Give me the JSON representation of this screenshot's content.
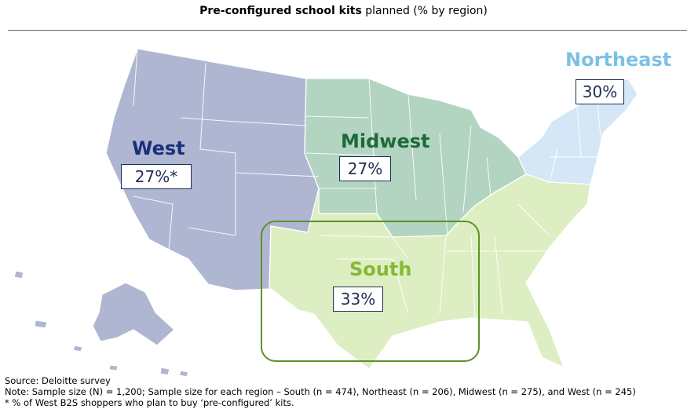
{
  "title": {
    "bold": "Pre-configured school kits",
    "rest": " planned (% by region)"
  },
  "colors": {
    "west": "#aeb6d2",
    "midwest": "#b2d4c0",
    "south": "#ddeec2",
    "northeast": "#d5e7f6",
    "west_label": "#1a2f7a",
    "midwest_label": "#1d6a3c",
    "south_label": "#86b832",
    "northeast_label": "#7cc0e4",
    "highlight_box": "#5f8f2a"
  },
  "regions": {
    "west": {
      "name": "West",
      "value": "27%*"
    },
    "midwest": {
      "name": "Midwest",
      "value": "27%"
    },
    "south": {
      "name": "South",
      "value": "33%"
    },
    "northeast": {
      "name": "Northeast",
      "value": "30%"
    }
  },
  "footer": {
    "source": "Source: Deloitte survey",
    "note": "Note:  Sample size (N) = 1,200; Sample size for each region – South (n = 474), Northeast (n = 206), Midwest (n = 275), and West (n = 245)",
    "footnote": "* % of West B2S shoppers who plan to buy ‘pre-configured’ kits."
  }
}
